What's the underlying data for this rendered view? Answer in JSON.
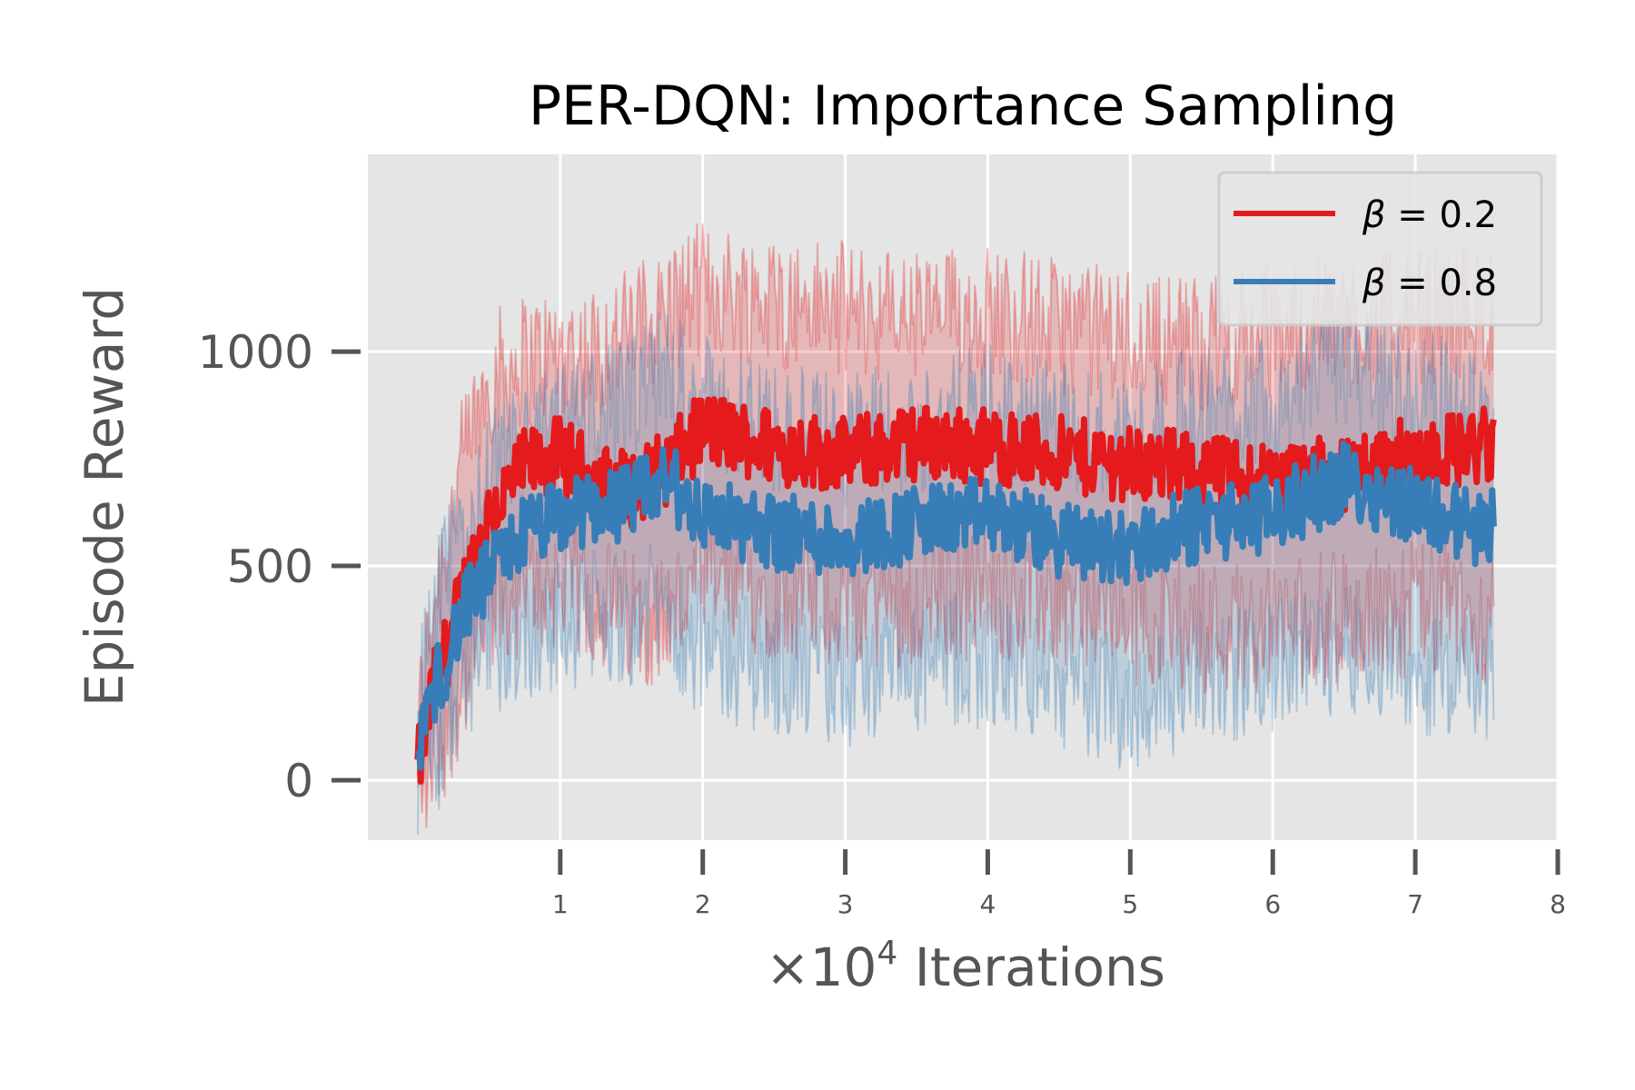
{
  "chart_data": {
    "type": "line",
    "title": "PER-DQN: Importance Sampling",
    "xlabel_prefix": "×10",
    "xlabel_exp": "4",
    "xlabel_suffix": " Iterations",
    "ylabel": "Episode Reward",
    "xlim": [
      -0.35,
      8
    ],
    "ylim": [
      -140,
      1460
    ],
    "x_ticks": [
      1,
      2,
      3,
      4,
      5,
      6,
      7,
      8
    ],
    "x_tick_labels": [
      "1",
      "2",
      "3",
      "4",
      "5",
      "6",
      "7",
      "8"
    ],
    "y_ticks": [
      0,
      500,
      1000
    ],
    "y_tick_labels": [
      "0",
      "500",
      "1000"
    ],
    "grid": true,
    "legend_position": "upper-right",
    "colors": {
      "red": "#e41a1c",
      "blue": "#377eb8",
      "background": "#e5e5e5",
      "grid": "#ffffff"
    },
    "series": [
      {
        "name": "β = 0.2",
        "legend_symbol": "β",
        "legend_value": " = 0.2",
        "color": "#e41a1c",
        "x": [
          0.0,
          0.1,
          0.2,
          0.3,
          0.5,
          0.75,
          1.0,
          1.25,
          1.5,
          1.75,
          2.0,
          2.5,
          3.0,
          3.5,
          4.0,
          4.5,
          5.0,
          5.5,
          6.0,
          6.5,
          7.0,
          7.5,
          7.55
        ],
        "mean": [
          20,
          200,
          300,
          420,
          620,
          730,
          760,
          700,
          680,
          730,
          820,
          780,
          760,
          790,
          780,
          760,
          740,
          720,
          700,
          720,
          760,
          780,
          760
        ],
        "upper": [
          110,
          400,
          560,
          720,
          940,
          980,
          1000,
          1000,
          1050,
          1100,
          1150,
          1120,
          1100,
          1080,
          1100,
          1060,
          1040,
          1020,
          1050,
          1080,
          1080,
          1100,
          1080
        ],
        "lower": [
          -60,
          60,
          120,
          220,
          380,
          440,
          460,
          420,
          380,
          380,
          460,
          440,
          420,
          420,
          440,
          420,
          380,
          360,
          360,
          380,
          400,
          380,
          360
        ]
      },
      {
        "name": "β = 0.8",
        "legend_symbol": "β",
        "legend_value": " = 0.8",
        "color": "#377eb8",
        "x": [
          0.0,
          0.1,
          0.2,
          0.3,
          0.5,
          0.75,
          1.0,
          1.25,
          1.5,
          1.75,
          2.0,
          2.5,
          3.0,
          3.5,
          4.0,
          4.5,
          5.0,
          5.5,
          6.0,
          6.5,
          7.0,
          7.5,
          7.55
        ],
        "mean": [
          80,
          200,
          280,
          380,
          480,
          580,
          610,
          640,
          650,
          700,
          620,
          580,
          560,
          600,
          620,
          560,
          540,
          600,
          620,
          700,
          640,
          580,
          600
        ],
        "upper": [
          200,
          360,
          480,
          560,
          700,
          780,
          820,
          860,
          880,
          960,
          880,
          820,
          800,
          820,
          860,
          820,
          800,
          860,
          900,
          980,
          900,
          860,
          860
        ],
        "lower": [
          -20,
          60,
          120,
          220,
          300,
          340,
          360,
          380,
          380,
          400,
          300,
          260,
          220,
          260,
          280,
          220,
          180,
          240,
          260,
          320,
          260,
          220,
          220
        ]
      }
    ]
  }
}
